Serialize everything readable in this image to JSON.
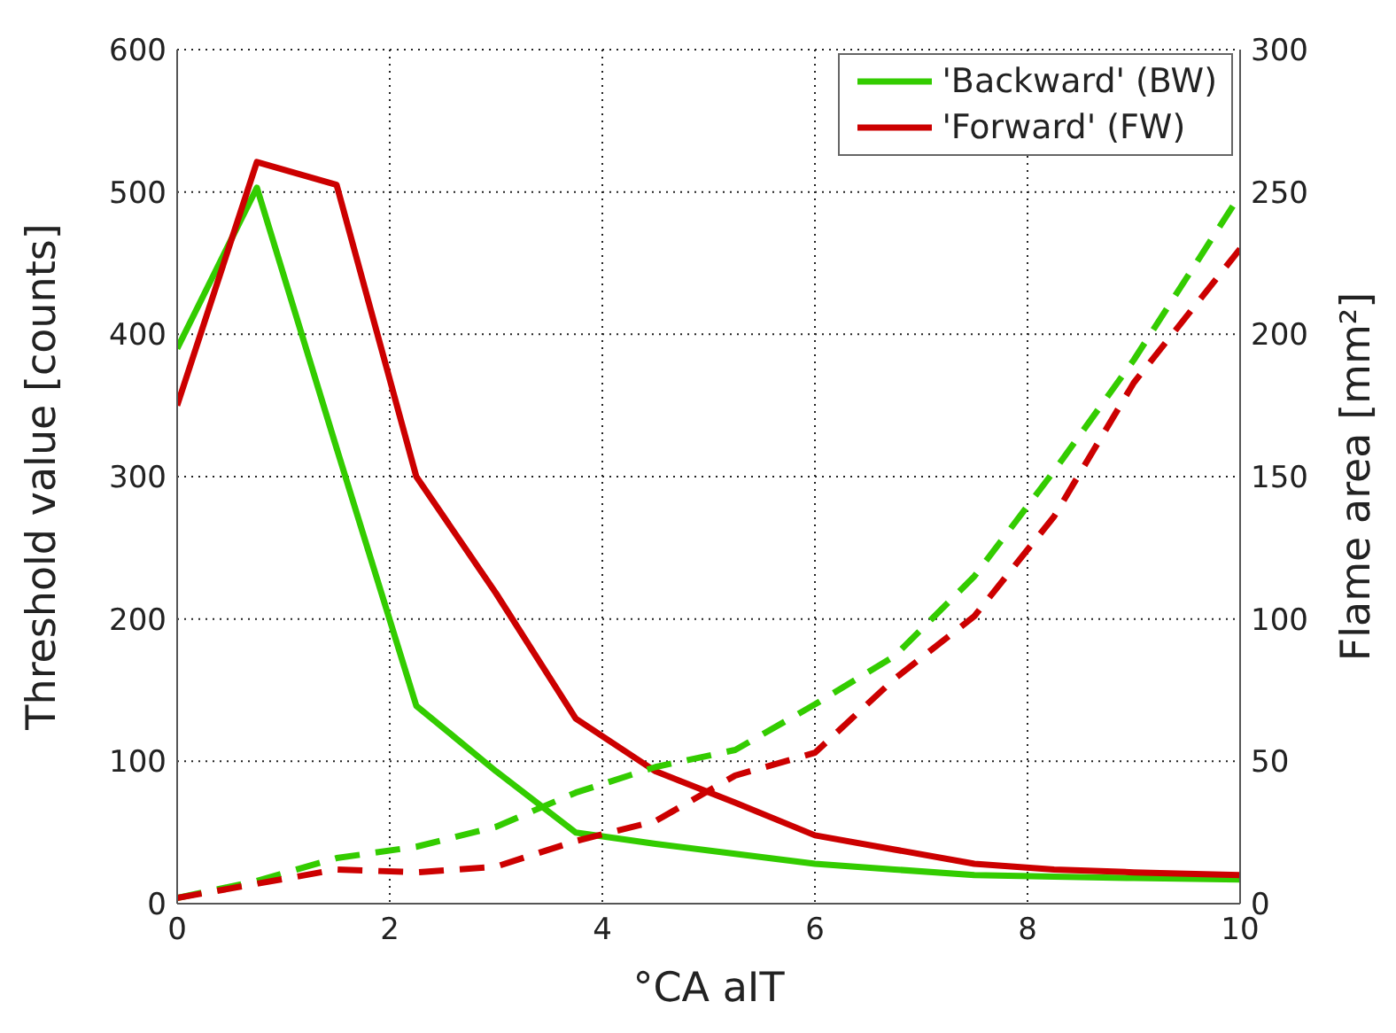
{
  "chart_data": {
    "type": "line",
    "xlabel": "°CA aIT",
    "ylabel": "Threshold value [counts]",
    "y2label": "Flame area [mm²]",
    "x": [
      0,
      0.75,
      1.5,
      2.25,
      3,
      3.75,
      4.5,
      5.25,
      6,
      6.75,
      7.5,
      8.25,
      9,
      10
    ],
    "xlim": [
      0,
      10
    ],
    "xticks": [
      0,
      2,
      4,
      6,
      8,
      10
    ],
    "ylim": [
      0,
      600
    ],
    "yticks": [
      0,
      100,
      200,
      300,
      400,
      500,
      600
    ],
    "y2lim": [
      0,
      300
    ],
    "y2ticks": [
      0,
      50,
      100,
      150,
      200,
      250,
      300
    ],
    "grid": true,
    "legend": "top right",
    "marker": "none",
    "series": [
      {
        "name": "'Backward' (BW)",
        "color": "#33cc00",
        "line_style": "solid",
        "values": [
          390,
          503,
          320,
          139,
          93,
          50,
          42,
          35,
          28,
          24,
          20,
          19,
          18,
          17
        ]
      },
      {
        "name": "'Forward' (FW)",
        "color": "#cc0000",
        "line_style": "solid",
        "values": [
          350,
          521,
          505,
          300,
          218,
          130,
          93,
          71,
          48,
          38,
          28,
          24,
          22,
          20
        ]
      },
      {
        "color": "#33cc00",
        "line_style": "dashed",
        "axis": "y2",
        "values": [
          2,
          8,
          16,
          20,
          27,
          39,
          48,
          54,
          70,
          87,
          115,
          152,
          191,
          249
        ]
      },
      {
        "color": "#cc0000",
        "line_style": "dashed",
        "axis": "y2",
        "values": [
          2,
          7,
          12,
          11,
          13,
          22,
          29,
          45,
          53,
          79,
          101,
          136,
          183,
          230
        ]
      }
    ]
  }
}
